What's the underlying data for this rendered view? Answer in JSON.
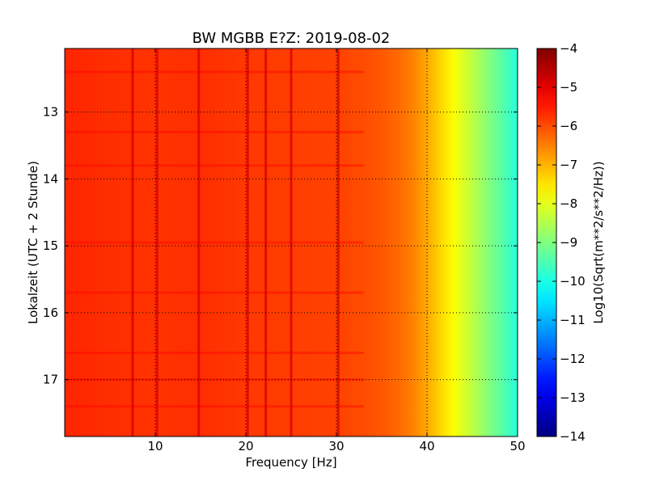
{
  "chart_data": {
    "type": "heatmap",
    "title": "BW MGBB E?Z: 2019-08-02",
    "xlabel": "Frequency [Hz]",
    "ylabel": "Lokalzeit (UTC + 2 Stunde)",
    "colorbar_label": "Log10(Sqrt(m**2/s**2/Hz))",
    "xlim": [
      0,
      50
    ],
    "ylim": [
      12.05,
      17.85
    ],
    "y_inverted": true,
    "x_ticks": [
      10,
      20,
      30,
      40,
      50
    ],
    "x_tick_labels": [
      "10",
      "20",
      "30",
      "40",
      "50"
    ],
    "y_ticks": [
      13,
      14,
      15,
      16,
      17
    ],
    "y_tick_labels": [
      "13",
      "14",
      "15",
      "16",
      "17"
    ],
    "clim": [
      -14,
      -4
    ],
    "colorbar_ticks": [
      -4,
      -5,
      -6,
      -7,
      -8,
      -9,
      -10,
      -11,
      -12,
      -13,
      -14
    ],
    "colorbar_tick_labels": [
      "−4",
      "−5",
      "−6",
      "−7",
      "−8",
      "−9",
      "−10",
      "−11",
      "−12",
      "−13",
      "−14"
    ],
    "colormap": "jet",
    "grid": true,
    "spectrum_profile": {
      "frequency_hz": [
        0,
        5,
        10,
        15,
        20,
        25,
        30,
        33,
        35,
        37,
        38,
        39,
        40,
        41,
        42,
        43,
        44,
        45,
        46,
        47,
        48,
        49,
        50
      ],
      "log_amplitude": [
        -5.6,
        -5.7,
        -5.75,
        -5.7,
        -5.8,
        -5.85,
        -5.9,
        -6.0,
        -6.1,
        -6.3,
        -6.45,
        -6.65,
        -6.9,
        -7.2,
        -7.5,
        -7.8,
        -8.1,
        -8.4,
        -8.7,
        -9.0,
        -9.3,
        -9.6,
        -9.9
      ]
    },
    "spectral_lines_hz": [
      7.5,
      10.2,
      14.8,
      20.2,
      22.2,
      25.0,
      30.2
    ],
    "time_bands_hour": [
      12.4,
      13.3,
      13.8,
      14.95,
      15.7,
      16.6,
      17.0,
      17.4
    ]
  }
}
